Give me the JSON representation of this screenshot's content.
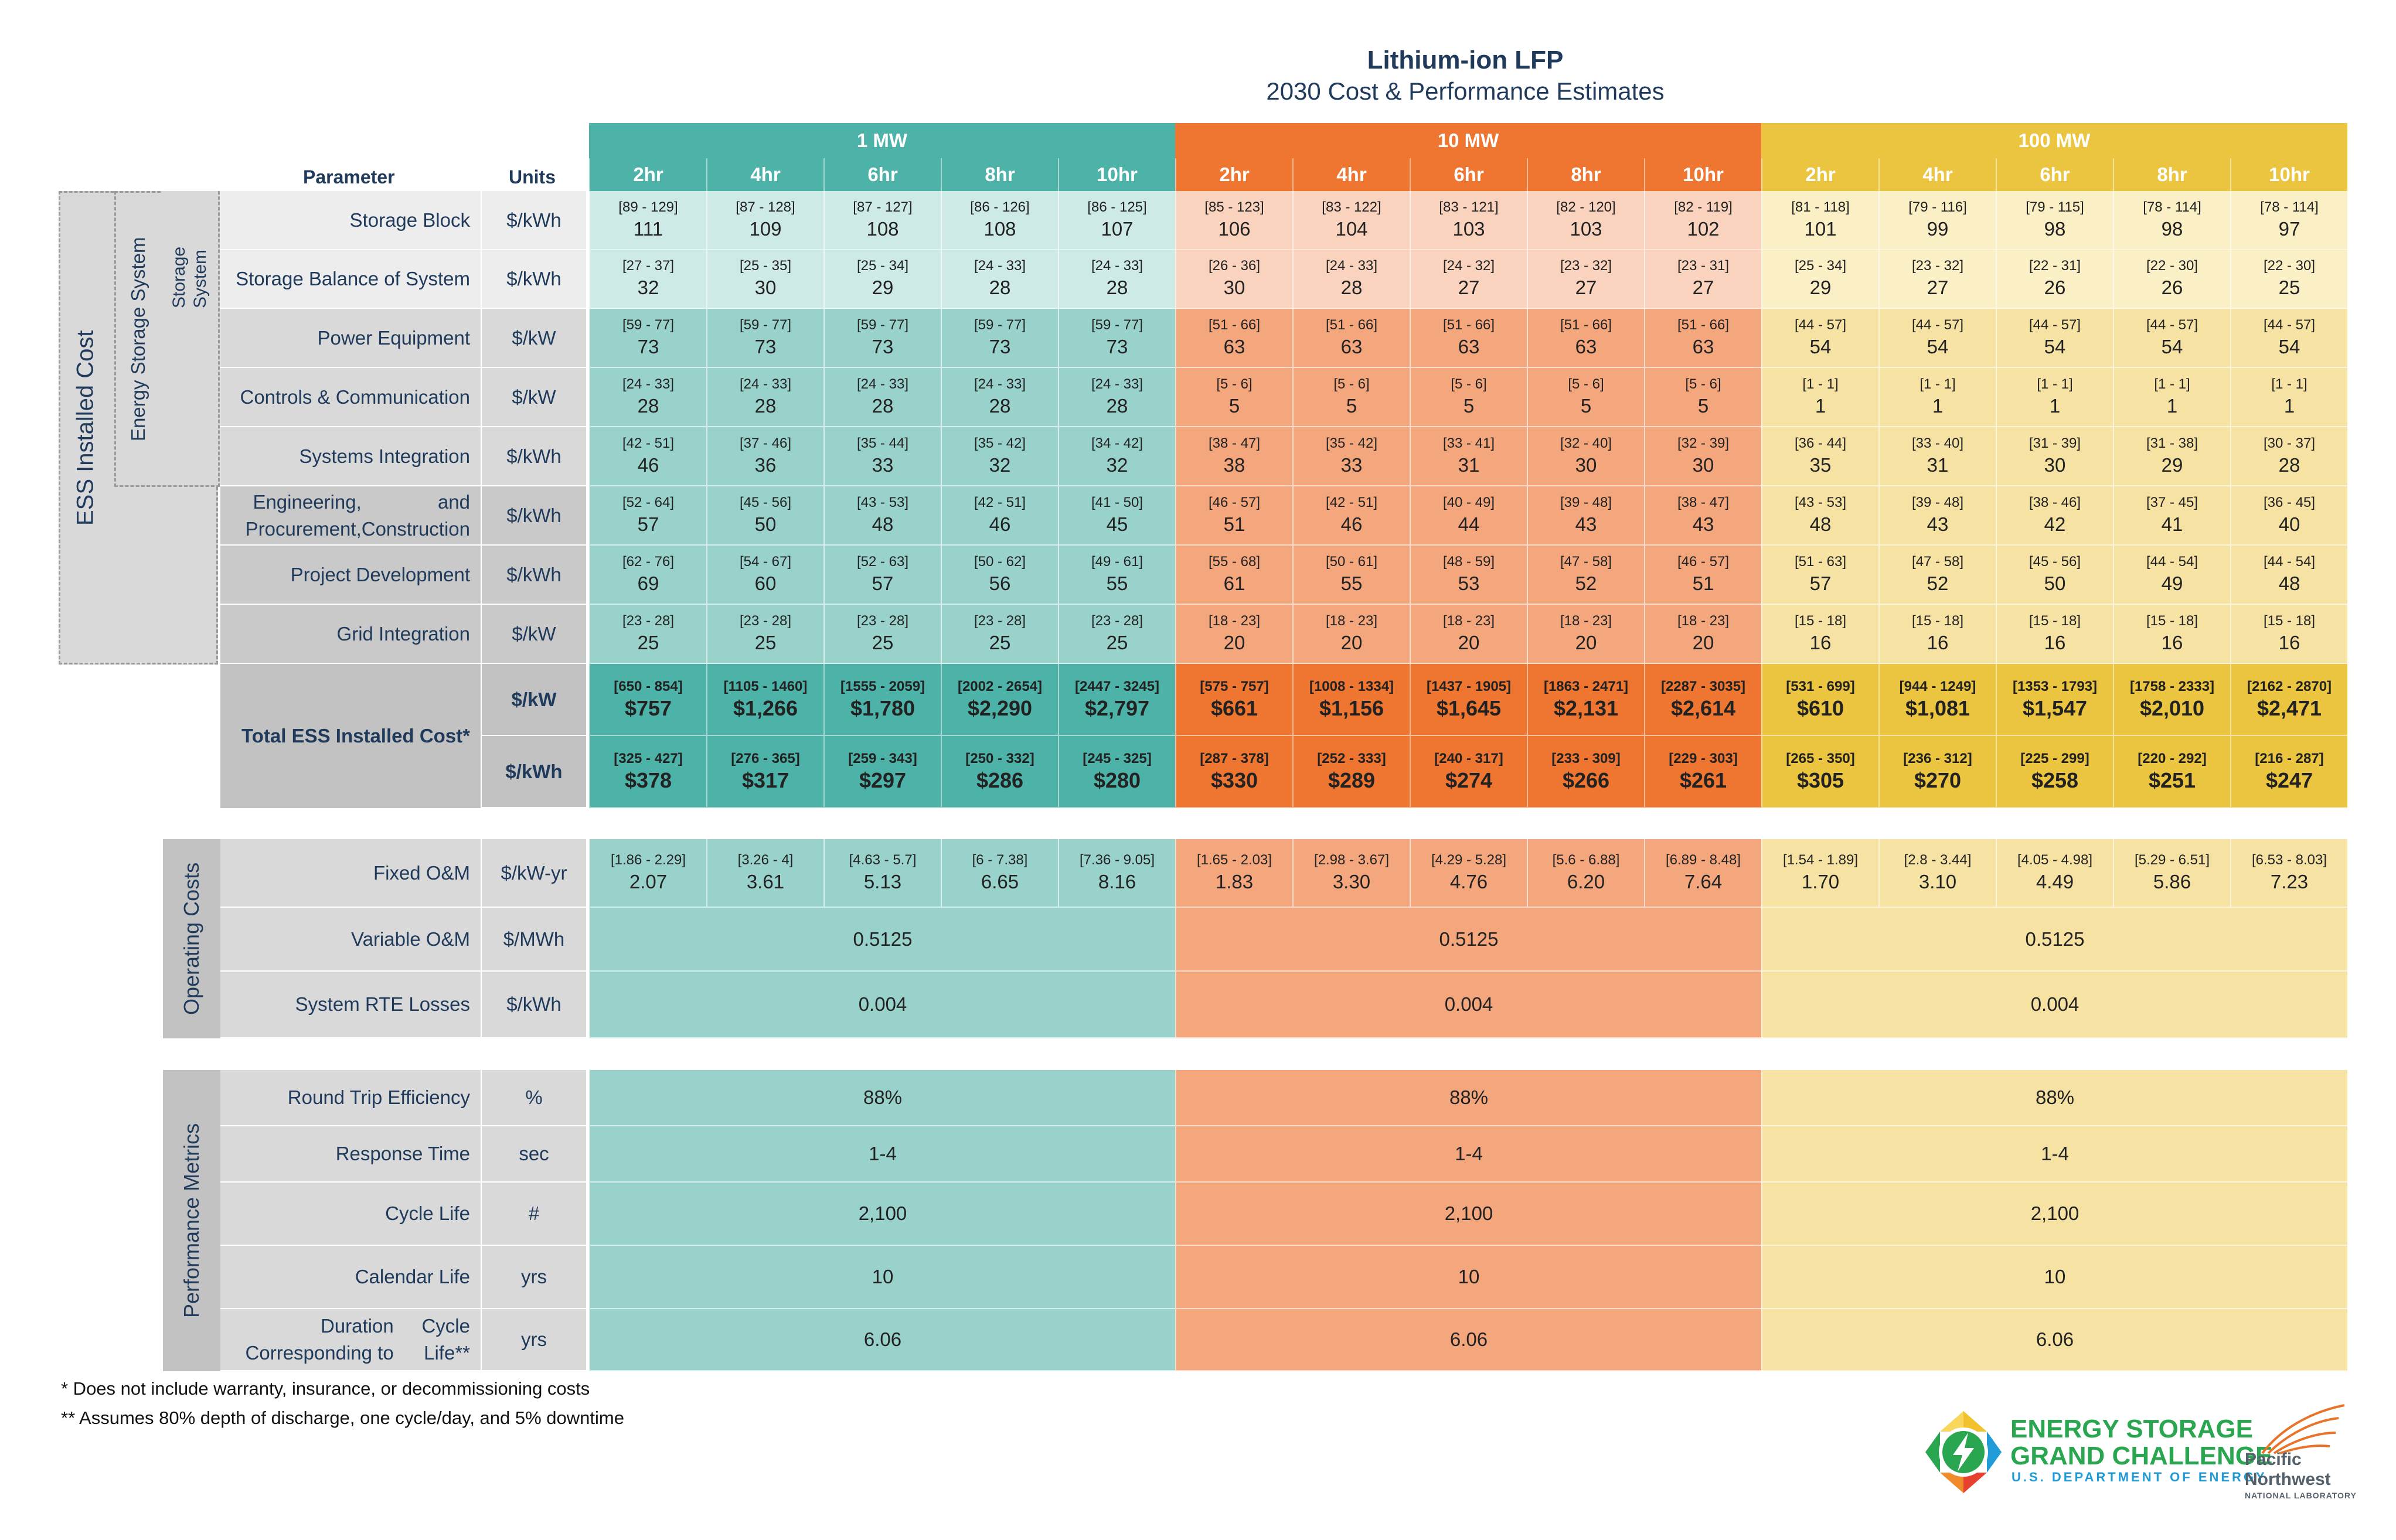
{
  "title": "Lithium-ion LFP",
  "subtitle": "2030 Cost & Performance Estimates",
  "header": {
    "parameter": "Parameter",
    "units": "Units"
  },
  "groups": [
    {
      "label": "1 MW",
      "color": "#4db2a8"
    },
    {
      "label": "10 MW",
      "color": "#ef7631"
    },
    {
      "label": "100 MW",
      "color": "#ecc540"
    }
  ],
  "durations": [
    "2hr",
    "4hr",
    "6hr",
    "8hr",
    "10hr"
  ],
  "category_labels": {
    "ess_installed_cost": "ESS Installed Cost",
    "energy_storage_system": "Energy Storage System",
    "storage_system": "Storage System",
    "operating_costs": "Operating Costs",
    "performance_metrics": "Performance Metrics"
  },
  "cost_rows": [
    {
      "param": "Storage Block",
      "unit": "$/kWh",
      "ranges": [
        "[89 - 129]",
        "[87 - 128]",
        "[87 - 127]",
        "[86 - 126]",
        "[86 - 125]",
        "[85 - 123]",
        "[83 - 122]",
        "[83 - 121]",
        "[82 - 120]",
        "[82 - 119]",
        "[81 - 118]",
        "[79 - 116]",
        "[79 - 115]",
        "[78 - 114]",
        "[78 - 114]"
      ],
      "values": [
        "111",
        "109",
        "108",
        "108",
        "107",
        "106",
        "104",
        "103",
        "103",
        "102",
        "101",
        "99",
        "98",
        "98",
        "97"
      ]
    },
    {
      "param": "Storage Balance of System",
      "unit": "$/kWh",
      "ranges": [
        "[27 - 37]",
        "[25 - 35]",
        "[25 - 34]",
        "[24 - 33]",
        "[24 - 33]",
        "[26 - 36]",
        "[24 - 33]",
        "[24 - 32]",
        "[23 - 32]",
        "[23 - 31]",
        "[25 - 34]",
        "[23 - 32]",
        "[22 - 31]",
        "[22 - 30]",
        "[22 - 30]"
      ],
      "values": [
        "32",
        "30",
        "29",
        "28",
        "28",
        "30",
        "28",
        "27",
        "27",
        "27",
        "29",
        "27",
        "26",
        "26",
        "25"
      ]
    },
    {
      "param": "Power Equipment",
      "unit": "$/kW",
      "ranges": [
        "[59 - 77]",
        "[59 - 77]",
        "[59 - 77]",
        "[59 - 77]",
        "[59 - 77]",
        "[51 - 66]",
        "[51 - 66]",
        "[51 - 66]",
        "[51 - 66]",
        "[51 - 66]",
        "[44 - 57]",
        "[44 - 57]",
        "[44 - 57]",
        "[44 - 57]",
        "[44 - 57]"
      ],
      "values": [
        "73",
        "73",
        "73",
        "73",
        "73",
        "63",
        "63",
        "63",
        "63",
        "63",
        "54",
        "54",
        "54",
        "54",
        "54"
      ]
    },
    {
      "param": "Controls & Communication",
      "unit": "$/kW",
      "ranges": [
        "[24 - 33]",
        "[24 - 33]",
        "[24 - 33]",
        "[24 - 33]",
        "[24 - 33]",
        "[5 - 6]",
        "[5 - 6]",
        "[5 - 6]",
        "[5 - 6]",
        "[5 - 6]",
        "[1 - 1]",
        "[1 - 1]",
        "[1 - 1]",
        "[1 - 1]",
        "[1 - 1]"
      ],
      "values": [
        "28",
        "28",
        "28",
        "28",
        "28",
        "5",
        "5",
        "5",
        "5",
        "5",
        "1",
        "1",
        "1",
        "1",
        "1"
      ]
    },
    {
      "param": "Systems Integration",
      "unit": "$/kWh",
      "ranges": [
        "[42 - 51]",
        "[37 - 46]",
        "[35 - 44]",
        "[35 - 42]",
        "[34 - 42]",
        "[38 - 47]",
        "[35 - 42]",
        "[33 - 41]",
        "[32 - 40]",
        "[32 - 39]",
        "[36 - 44]",
        "[33 - 40]",
        "[31 - 39]",
        "[31 - 38]",
        "[30 - 37]"
      ],
      "values": [
        "46",
        "36",
        "33",
        "32",
        "32",
        "38",
        "33",
        "31",
        "30",
        "30",
        "35",
        "31",
        "30",
        "29",
        "28"
      ]
    },
    {
      "param": "Engineering, Procurement, and Construction",
      "param_line1": "Engineering, Procurement,",
      "param_line2": "and Construction",
      "unit": "$/kWh",
      "ranges": [
        "[52 - 64]",
        "[45 - 56]",
        "[43 - 53]",
        "[42 - 51]",
        "[41 - 50]",
        "[46 - 57]",
        "[42 - 51]",
        "[40 - 49]",
        "[39 - 48]",
        "[38 - 47]",
        "[43 - 53]",
        "[39 - 48]",
        "[38 - 46]",
        "[37 - 45]",
        "[36 - 45]"
      ],
      "values": [
        "57",
        "50",
        "48",
        "46",
        "45",
        "51",
        "46",
        "44",
        "43",
        "43",
        "48",
        "43",
        "42",
        "41",
        "40"
      ]
    },
    {
      "param": "Project Development",
      "unit": "$/kWh",
      "ranges": [
        "[62 - 76]",
        "[54 - 67]",
        "[52 - 63]",
        "[50 - 62]",
        "[49 - 61]",
        "[55 - 68]",
        "[50 - 61]",
        "[48 - 59]",
        "[47 - 58]",
        "[46 - 57]",
        "[51 - 63]",
        "[47 - 58]",
        "[45 - 56]",
        "[44 - 54]",
        "[44 - 54]"
      ],
      "values": [
        "69",
        "60",
        "57",
        "56",
        "55",
        "61",
        "55",
        "53",
        "52",
        "51",
        "57",
        "52",
        "50",
        "49",
        "48"
      ]
    },
    {
      "param": "Grid Integration",
      "unit": "$/kW",
      "ranges": [
        "[23 - 28]",
        "[23 - 28]",
        "[23 - 28]",
        "[23 - 28]",
        "[23 - 28]",
        "[18 - 23]",
        "[18 - 23]",
        "[18 - 23]",
        "[18 - 23]",
        "[18 - 23]",
        "[15 - 18]",
        "[15 - 18]",
        "[15 - 18]",
        "[15 - 18]",
        "[15 - 18]"
      ],
      "values": [
        "25",
        "25",
        "25",
        "25",
        "25",
        "20",
        "20",
        "20",
        "20",
        "20",
        "16",
        "16",
        "16",
        "16",
        "16"
      ]
    }
  ],
  "total": {
    "label": "Total ESS Installed Cost*",
    "rows": [
      {
        "unit": "$/kW",
        "ranges": [
          "[650 - 854]",
          "[1105 - 1460]",
          "[1555 - 2059]",
          "[2002 - 2654]",
          "[2447 - 3245]",
          "[575 - 757]",
          "[1008 - 1334]",
          "[1437 - 1905]",
          "[1863 - 2471]",
          "[2287 - 3035]",
          "[531 - 699]",
          "[944 - 1249]",
          "[1353 - 1793]",
          "[1758 - 2333]",
          "[2162 - 2870]"
        ],
        "values": [
          "$757",
          "$1,266",
          "$1,780",
          "$2,290",
          "$2,797",
          "$661",
          "$1,156",
          "$1,645",
          "$2,131",
          "$2,614",
          "$610",
          "$1,081",
          "$1,547",
          "$2,010",
          "$2,471"
        ]
      },
      {
        "unit": "$/kWh",
        "ranges": [
          "[325 - 427]",
          "[276 - 365]",
          "[259 - 343]",
          "[250 - 332]",
          "[245 - 325]",
          "[287 - 378]",
          "[252 - 333]",
          "[240 - 317]",
          "[233 - 309]",
          "[229 - 303]",
          "[265 - 350]",
          "[236 - 312]",
          "[225 - 299]",
          "[220 - 292]",
          "[216 - 287]"
        ],
        "values": [
          "$378",
          "$317",
          "$297",
          "$286",
          "$280",
          "$330",
          "$289",
          "$274",
          "$266",
          "$261",
          "$305",
          "$270",
          "$258",
          "$251",
          "$247"
        ]
      }
    ]
  },
  "fixed_om": {
    "param": "Fixed O&M",
    "unit": "$/kW-yr",
    "ranges": [
      "[1.86 - 2.29]",
      "[3.26 - 4]",
      "[4.63 - 5.7]",
      "[6 - 7.38]",
      "[7.36 - 9.05]",
      "[1.65 - 2.03]",
      "[2.98 - 3.67]",
      "[4.29 - 5.28]",
      "[5.6 - 6.88]",
      "[6.89 - 8.48]",
      "[1.54 - 1.89]",
      "[2.8 - 3.44]",
      "[4.05 - 4.98]",
      "[5.29 - 6.51]",
      "[6.53 - 8.03]"
    ],
    "values": [
      "2.07",
      "3.61",
      "5.13",
      "6.65",
      "8.16",
      "1.83",
      "3.30",
      "4.76",
      "6.20",
      "7.64",
      "1.70",
      "3.10",
      "4.49",
      "5.86",
      "7.23"
    ]
  },
  "operating_merged": [
    {
      "param": "Variable O&M",
      "unit": "$/MWh",
      "values": [
        "0.5125",
        "0.5125",
        "0.5125"
      ]
    },
    {
      "param": "System RTE Losses",
      "unit": "$/kWh",
      "values": [
        "0.004",
        "0.004",
        "0.004"
      ]
    }
  ],
  "performance": [
    {
      "param": "Round Trip Efficiency",
      "unit": "%",
      "values": [
        "88%",
        "88%",
        "88%"
      ]
    },
    {
      "param": "Response Time",
      "unit": "sec",
      "values": [
        "1-4",
        "1-4",
        "1-4"
      ]
    },
    {
      "param": "Cycle Life",
      "unit": "#",
      "values": [
        "2,100",
        "2,100",
        "2,100"
      ]
    },
    {
      "param": "Calendar Life",
      "unit": "yrs",
      "values": [
        "10",
        "10",
        "10"
      ]
    },
    {
      "param": "Duration Corresponding to Cycle Life**",
      "param_line1": "Duration Corresponding to",
      "param_line2": "Cycle Life**",
      "unit": "yrs",
      "values": [
        "6.06",
        "6.06",
        "6.06"
      ]
    }
  ],
  "notes": [
    "* Does not include warranty, insurance, or decommissioning costs",
    "** Assumes 80% depth of discharge, one cycle/day, and 5% downtime"
  ],
  "logos": {
    "esgc_line1": "ENERGY STORAGE",
    "esgc_line2": "GRAND CHALLENGE",
    "esgc_line3": "U.S. DEPARTMENT OF ENERGY",
    "pnnl_line1": "Pacific",
    "pnnl_line2": "Northwest",
    "pnnl_line3": "NATIONAL LABORATORY"
  },
  "colors": {
    "teal": "#4db2a8",
    "orange": "#ef7631",
    "yellow": "#ecc540",
    "label_grey": "#d9d9d9",
    "dark_grey": "#c2c2c2",
    "title_blue": "#1f3a5a"
  }
}
